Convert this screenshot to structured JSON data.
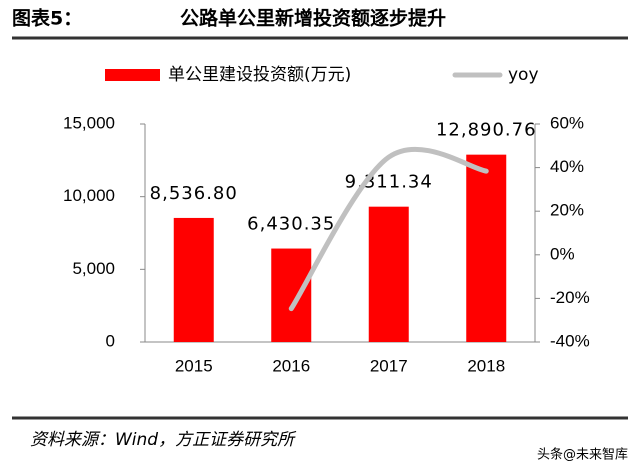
{
  "chart_data": {
    "type": "bar",
    "figure_label": "图表5：",
    "title": "公路单公里新增投资额逐步提升",
    "categories": [
      "2015",
      "2016",
      "2017",
      "2018"
    ],
    "series": [
      {
        "name": "单公里建设投资额(万元)",
        "type": "bar",
        "color": "#ff0000",
        "values": [
          8536.8,
          6430.35,
          9311.34,
          12890.76
        ],
        "value_labels": [
          "8,536.80",
          "6,430.35",
          "9,311.34",
          "12,890.76"
        ]
      },
      {
        "name": "yoy",
        "type": "line",
        "color": "#c0c0c0",
        "axis": "y2",
        "values": [
          null,
          -24.7,
          44.8,
          38.4
        ]
      }
    ],
    "ylim": [
      0,
      15000
    ],
    "yticks": [
      0,
      {
        "value": 5000,
        "label": "5,000"
      },
      {
        "value": 10000,
        "label": "10,000"
      },
      {
        "value": 15000,
        "label": "15,000"
      }
    ],
    "y2lim": [
      -40,
      60
    ],
    "y2ticks": [
      {
        "value": -40,
        "label": "-40%"
      },
      {
        "value": -20,
        "label": "-20%"
      },
      {
        "value": 0,
        "label": "0%"
      },
      {
        "value": 20,
        "label": "20%"
      },
      {
        "value": 40,
        "label": "40%"
      },
      {
        "value": 60,
        "label": "60%"
      }
    ],
    "grid": false,
    "source": "资料来源：Wind，方正证券研究所",
    "watermark": "头条@未来智库"
  }
}
